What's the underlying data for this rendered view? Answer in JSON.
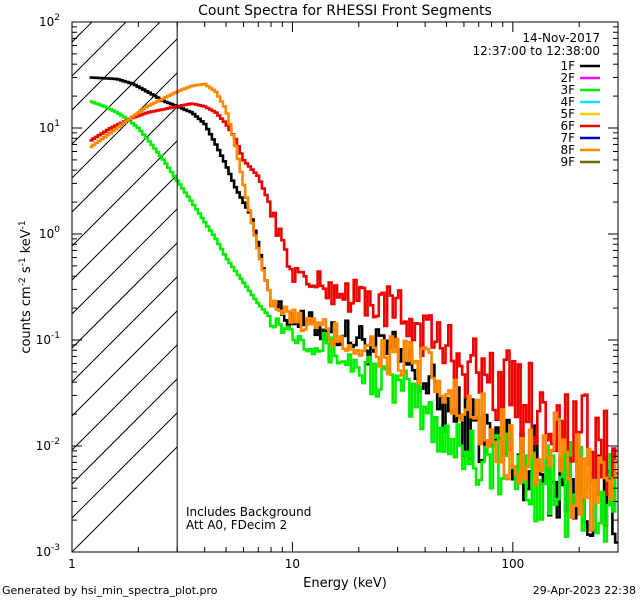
{
  "chart_data": {
    "type": "line",
    "title": "Count Spectra for RHESSI Front Segments",
    "xlabel": "Energy (keV)",
    "ylabel_parts": [
      "counts cm",
      "-2",
      " s",
      "-1",
      " keV",
      "-1"
    ],
    "xscale": "log",
    "yscale": "log",
    "xlim": [
      1.0,
      300.0
    ],
    "ylim": [
      0.001,
      100.0
    ],
    "x_ticks": [
      {
        "value": 10,
        "label": "10"
      },
      {
        "value": 100,
        "label": "100"
      }
    ],
    "x_min_label": "1",
    "y_ticks": [
      {
        "value": 100,
        "base": "10",
        "exp": "2"
      },
      {
        "value": 10,
        "base": "10",
        "exp": "1"
      },
      {
        "value": 1,
        "base": "10",
        "exp": "0"
      },
      {
        "value": 0.1,
        "base": "10",
        "exp": "-1"
      },
      {
        "value": 0.01,
        "base": "10",
        "exp": "-2"
      },
      {
        "value": 0.001,
        "base": "10",
        "exp": "-3"
      }
    ],
    "hatched_region": [
      1.0,
      3.0
    ],
    "vertical_line_x": 3.0,
    "date": "14-Nov-2017",
    "time_range": "12:37:00 to 12:38:00",
    "notes": [
      "Includes Background",
      "Att A0, FDecim 2"
    ],
    "legend": [
      {
        "name": "1F",
        "color": "#000000"
      },
      {
        "name": "2F",
        "color": "#ff00ff"
      },
      {
        "name": "3F",
        "color": "#00ee00"
      },
      {
        "name": "4F",
        "color": "#00e5ff"
      },
      {
        "name": "5F",
        "color": "#ffcc00"
      },
      {
        "name": "6F",
        "color": "#ee0000"
      },
      {
        "name": "7F",
        "color": "#0000cc"
      },
      {
        "name": "8F",
        "color": "#ff8800"
      },
      {
        "name": "9F",
        "color": "#6b6b00"
      }
    ],
    "series": [
      {
        "name": "1F",
        "color": "#000000",
        "points": [
          [
            1.2,
            30
          ],
          [
            1.6,
            29
          ],
          [
            1.9,
            26
          ],
          [
            2.2,
            22
          ],
          [
            2.6,
            18
          ],
          [
            3,
            16
          ],
          [
            3.5,
            14
          ],
          [
            4,
            11
          ],
          [
            4.5,
            7
          ],
          [
            5,
            4.5
          ],
          [
            5.5,
            2.8
          ],
          [
            6,
            2
          ],
          [
            6.5,
            1.5
          ],
          [
            7,
            0.8
          ],
          [
            7.5,
            0.4
          ],
          [
            8,
            0.25
          ],
          [
            9,
            0.18
          ],
          [
            10,
            0.16
          ],
          [
            12,
            0.14
          ],
          [
            15,
            0.12
          ],
          [
            20,
            0.1
          ],
          [
            25,
            0.08
          ],
          [
            30,
            0.07
          ],
          [
            40,
            0.04
          ],
          [
            50,
            0.022
          ],
          [
            70,
            0.013
          ],
          [
            100,
            0.009
          ],
          [
            150,
            0.0055
          ],
          [
            200,
            0.0045
          ],
          [
            250,
            0.003
          ],
          [
            300,
            0.0025
          ]
        ]
      },
      {
        "name": "3F",
        "color": "#00ee00",
        "points": [
          [
            1.2,
            18
          ],
          [
            1.4,
            16
          ],
          [
            1.6,
            14
          ],
          [
            1.8,
            12
          ],
          [
            2,
            10
          ],
          [
            2.3,
            7
          ],
          [
            2.6,
            5
          ],
          [
            3,
            3.2
          ],
          [
            3.5,
            2
          ],
          [
            4,
            1.3
          ],
          [
            4.5,
            0.9
          ],
          [
            5,
            0.6
          ],
          [
            6,
            0.35
          ],
          [
            7,
            0.22
          ],
          [
            8,
            0.16
          ],
          [
            10,
            0.12
          ],
          [
            12,
            0.1
          ],
          [
            15,
            0.08
          ],
          [
            20,
            0.055
          ],
          [
            30,
            0.035
          ],
          [
            40,
            0.02
          ],
          [
            50,
            0.013
          ],
          [
            70,
            0.008
          ],
          [
            100,
            0.006
          ],
          [
            150,
            0.0045
          ],
          [
            200,
            0.0035
          ],
          [
            250,
            0.003
          ],
          [
            300,
            0.0028
          ]
        ]
      },
      {
        "name": "6F",
        "color": "#ee0000",
        "points": [
          [
            1.2,
            7.5
          ],
          [
            1.5,
            10
          ],
          [
            1.8,
            12
          ],
          [
            2.2,
            14
          ],
          [
            2.6,
            15
          ],
          [
            3,
            16
          ],
          [
            3.5,
            17
          ],
          [
            4,
            16
          ],
          [
            4.5,
            14
          ],
          [
            5,
            11
          ],
          [
            5.5,
            8
          ],
          [
            6,
            5
          ],
          [
            7,
            3.5
          ],
          [
            8,
            1.8
          ],
          [
            9,
            0.8
          ],
          [
            10,
            0.45
          ],
          [
            12,
            0.35
          ],
          [
            15,
            0.3
          ],
          [
            20,
            0.25
          ],
          [
            25,
            0.22
          ],
          [
            30,
            0.18
          ],
          [
            40,
            0.12
          ],
          [
            50,
            0.08
          ],
          [
            70,
            0.05
          ],
          [
            100,
            0.032
          ],
          [
            150,
            0.02
          ],
          [
            200,
            0.012
          ],
          [
            250,
            0.009
          ],
          [
            300,
            0.007
          ]
        ]
      },
      {
        "name": "8F",
        "color": "#ff8800",
        "points": [
          [
            1.2,
            6.5
          ],
          [
            1.5,
            9
          ],
          [
            1.8,
            12
          ],
          [
            2.2,
            16
          ],
          [
            2.6,
            19
          ],
          [
            3,
            22
          ],
          [
            3.5,
            25
          ],
          [
            4,
            26
          ],
          [
            4.5,
            22
          ],
          [
            5,
            15
          ],
          [
            5.5,
            7
          ],
          [
            6,
            3
          ],
          [
            6.5,
            1.4
          ],
          [
            7,
            0.7
          ],
          [
            7.5,
            0.4
          ],
          [
            8,
            0.25
          ],
          [
            9,
            0.18
          ],
          [
            10,
            0.16
          ],
          [
            12,
            0.14
          ],
          [
            15,
            0.11
          ],
          [
            20,
            0.09
          ],
          [
            25,
            0.08
          ],
          [
            30,
            0.07
          ],
          [
            40,
            0.05
          ],
          [
            50,
            0.03
          ],
          [
            70,
            0.015
          ],
          [
            100,
            0.01
          ],
          [
            150,
            0.008
          ],
          [
            200,
            0.005
          ],
          [
            250,
            0.003
          ],
          [
            300,
            0.0025
          ]
        ]
      }
    ]
  },
  "footer": {
    "generated_by": "Generated by hsi_min_spectra_plot.pro",
    "timestamp": "29-Apr-2023 22:38"
  }
}
